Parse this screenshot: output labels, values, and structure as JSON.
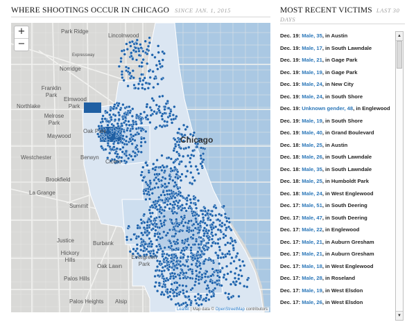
{
  "header": {
    "title": "WHERE SHOOTINGS OCCUR IN CHICAGO",
    "subtitle": "SINCE JAN. 1, 2015"
  },
  "victims_header": {
    "title": "MOST RECENT VICTIMS",
    "subtitle": "LAST 30 DAYS"
  },
  "map": {
    "zoom_in": "+",
    "zoom_out": "−",
    "city_label": "Chicago",
    "places": [
      "Park Ridge",
      "Lincolnwood",
      "Norridge",
      "Franklin Park",
      "Elmwood Park",
      "Northlake",
      "Melrose Park",
      "Maywood",
      "Oak Park",
      "Westchester",
      "Berwyn",
      "Cicero",
      "Brookfield",
      "La Grange",
      "Summit",
      "Justice",
      "Burbank",
      "Hickory Hills",
      "Oak Lawn",
      "Evergreen Park",
      "Palos Hills",
      "Palos Heights",
      "Alsip",
      "Expressway"
    ],
    "attribution": {
      "leaflet": "Leaflet",
      "sep": " | Map data © ",
      "osm": "OpenStreetMap",
      "contrib": " contributors"
    },
    "colors": {
      "water": "#a9c7e2",
      "land": "#d8d8d6",
      "dot": "#1f64ad",
      "zone_light": "#dde8f3",
      "zone_mid": "#bfd4ea",
      "zone_dark": "#1f5fa3"
    }
  },
  "victims": [
    {
      "date": "Dec. 19:",
      "desc": "Male, 35",
      "place": "Austin"
    },
    {
      "date": "Dec. 19:",
      "desc": "Male, 17",
      "place": "South Lawndale"
    },
    {
      "date": "Dec. 19:",
      "desc": "Male, 21",
      "place": "Gage Park"
    },
    {
      "date": "Dec. 19:",
      "desc": "Male, 19",
      "place": "Gage Park"
    },
    {
      "date": "Dec. 19:",
      "desc": "Male, 24",
      "place": "New City"
    },
    {
      "date": "Dec. 19:",
      "desc": "Male, 24",
      "place": "South Shore"
    },
    {
      "date": "Dec. 19:",
      "desc": "Unknown gender, 48",
      "place": "Englewood"
    },
    {
      "date": "Dec. 19:",
      "desc": "Male, 19",
      "place": "South Shore"
    },
    {
      "date": "Dec. 19:",
      "desc": "Male, 40",
      "place": "Grand Boulevard"
    },
    {
      "date": "Dec. 18:",
      "desc": "Male, 25",
      "place": "Austin"
    },
    {
      "date": "Dec. 18:",
      "desc": "Male, 26",
      "place": "South Lawndale"
    },
    {
      "date": "Dec. 18:",
      "desc": "Male, 35",
      "place": "South Lawndale"
    },
    {
      "date": "Dec. 18:",
      "desc": "Male, 25",
      "place": "Humboldt Park"
    },
    {
      "date": "Dec. 18:",
      "desc": "Male, 24",
      "place": "West Englewood"
    },
    {
      "date": "Dec. 17:",
      "desc": "Male, 51",
      "place": "South Deering"
    },
    {
      "date": "Dec. 17:",
      "desc": "Male, 47",
      "place": "South Deering"
    },
    {
      "date": "Dec. 17:",
      "desc": "Male, 22",
      "place": "Englewood"
    },
    {
      "date": "Dec. 17:",
      "desc": "Male, 21",
      "place": "Auburn Gresham"
    },
    {
      "date": "Dec. 17:",
      "desc": "Male, 21",
      "place": "Auburn Gresham"
    },
    {
      "date": "Dec. 17:",
      "desc": "Male, 18",
      "place": "West Englewood"
    },
    {
      "date": "Dec. 17:",
      "desc": "Male, 28",
      "place": "Roseland"
    },
    {
      "date": "Dec. 17:",
      "desc": "Male, 19",
      "place": "West Elsdon"
    },
    {
      "date": "Dec. 17:",
      "desc": "Male, 26",
      "place": "West Elsdon"
    }
  ],
  "victim_joiner": ", in ",
  "scrollbar": {
    "up": "▲",
    "down": "▼"
  }
}
